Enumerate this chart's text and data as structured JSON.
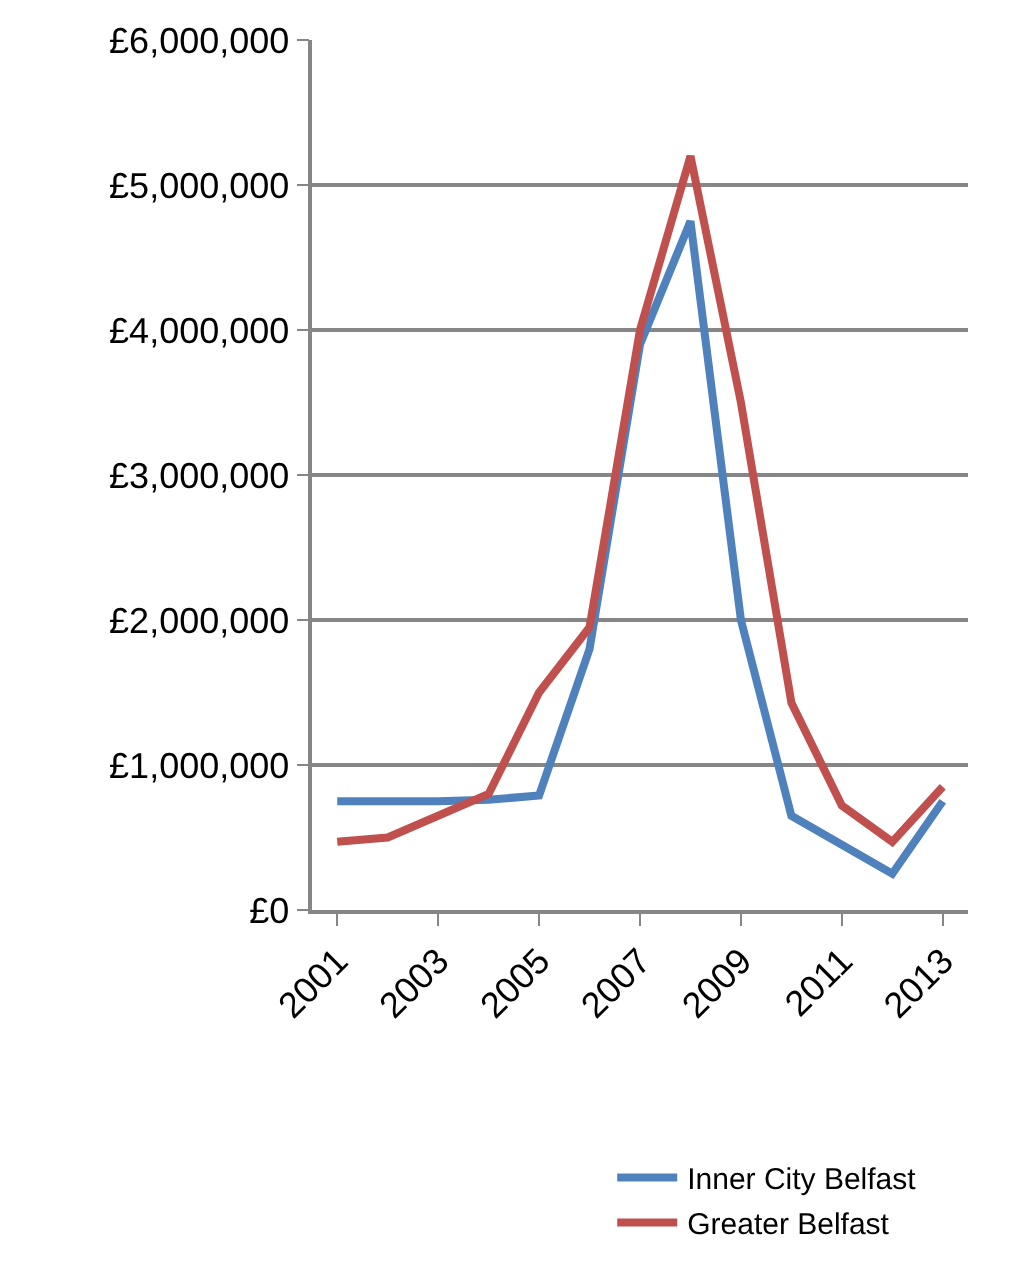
{
  "chart_data": {
    "type": "line",
    "x": [
      2001,
      2002,
      2003,
      2004,
      2005,
      2006,
      2007,
      2008,
      2009,
      2010,
      2011,
      2012,
      2013
    ],
    "series": [
      {
        "name": "Inner City Belfast",
        "color": "#4f81bd",
        "values": [
          750000,
          750000,
          750000,
          760000,
          790000,
          1800000,
          3900000,
          4750000,
          2000000,
          650000,
          450000,
          250000,
          750000
        ]
      },
      {
        "name": "Greater Belfast",
        "color": "#c0504d",
        "values": [
          470000,
          500000,
          650000,
          800000,
          1500000,
          1950000,
          4000000,
          5200000,
          3500000,
          1430000,
          720000,
          470000,
          850000
        ]
      }
    ],
    "xlim": [
      2000.5,
      2013.5
    ],
    "xticks": [
      2001,
      2003,
      2005,
      2007,
      2009,
      2011,
      2013
    ],
    "ylim": [
      0,
      6000000
    ],
    "yticks": [
      {
        "value": 0,
        "label": "£0"
      },
      {
        "value": 1000000,
        "label": "£1,000,000"
      },
      {
        "value": 2000000,
        "label": "£2,000,000"
      },
      {
        "value": 3000000,
        "label": "£3,000,000"
      },
      {
        "value": 4000000,
        "label": "£4,000,000"
      },
      {
        "value": 5000000,
        "label": "£5,000,000"
      },
      {
        "value": 6000000,
        "label": "£6,000,000"
      }
    ],
    "grid": "y",
    "legend": "bottom",
    "marker": "none",
    "line_style": "solid"
  }
}
